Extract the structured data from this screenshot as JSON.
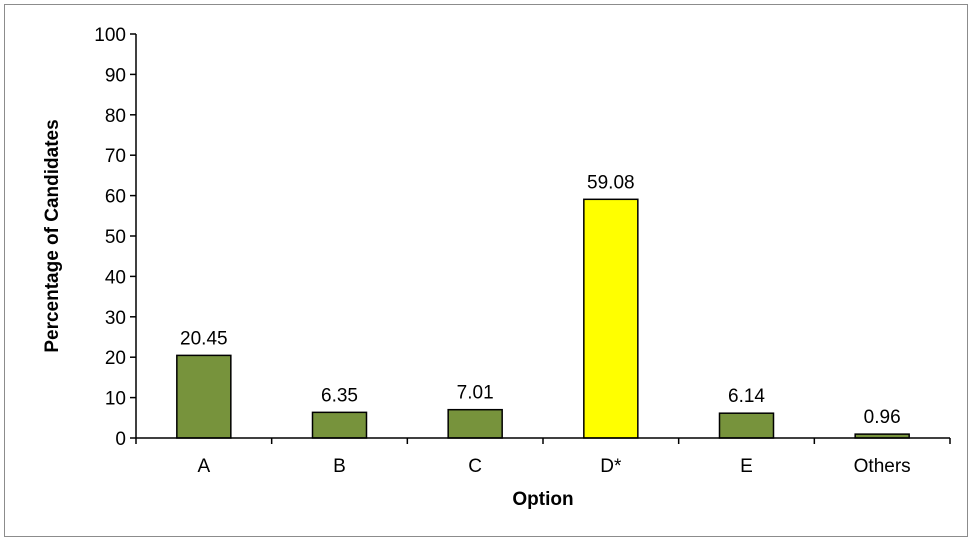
{
  "chart_data": {
    "type": "bar",
    "categories": [
      "A",
      "B",
      "C",
      "D*",
      "E",
      "Others"
    ],
    "values": [
      20.45,
      6.35,
      7.01,
      59.08,
      6.14,
      0.96
    ],
    "value_labels": [
      "20.45",
      "6.35",
      "7.01",
      "59.08",
      "6.14",
      "0.96"
    ],
    "xlabel": "Option",
    "ylabel": "Percentage of Candidates",
    "ylim": [
      0,
      100
    ],
    "yticks": [
      "0",
      "10",
      "20",
      "30",
      "40",
      "50",
      "60",
      "70",
      "80",
      "90",
      "100"
    ],
    "grid": false,
    "legend": "none",
    "colors": {
      "bar": "#77933c",
      "highlight_bar": "#ffff00",
      "bar_outline": "#000000"
    },
    "highlight_category": "D*"
  }
}
